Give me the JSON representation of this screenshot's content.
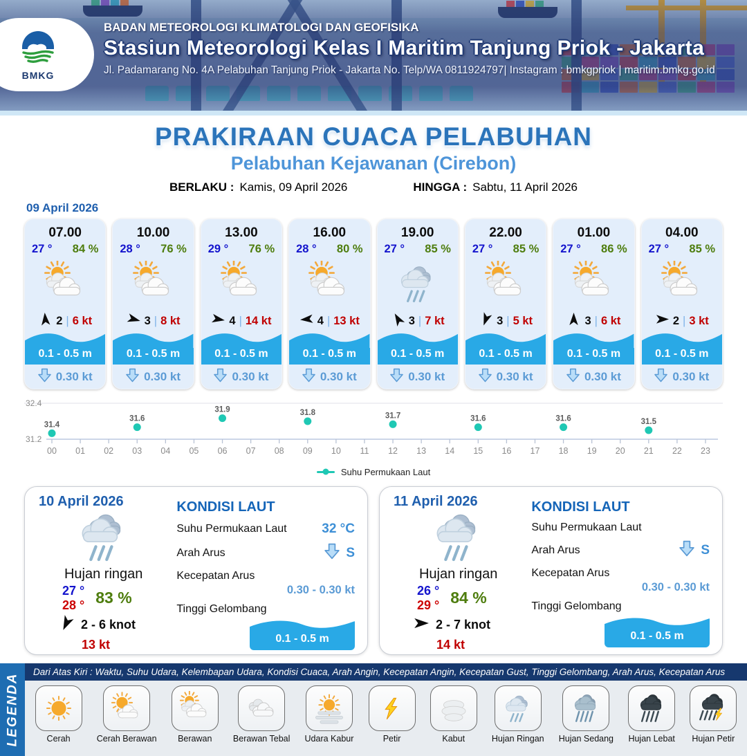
{
  "header": {
    "logo_text": "BMKG",
    "agency": "BADAN METEOROLOGI KLIMATOLOGI DAN GEOFISIKA",
    "station": "Stasiun Meteorologi Kelas I Maritim Tanjung Priok - Jakarta",
    "address": "Jl. Padamarang No. 4A Pelabuhan Tanjung Priok - Jakarta No. Telp/WA 0811924797| Instagram : bmkgpriok | maritim.bmkg.go.id"
  },
  "main": {
    "title": "PRAKIRAAN CUACA PELABUHAN",
    "subtitle": "Pelabuhan Kejawanan (Cirebon)",
    "valid_from_label": "BERLAKU :",
    "valid_from": "Kamis, 09 April 2026",
    "valid_to_label": "HINGGA :",
    "valid_to": "Sabtu, 11 April 2026"
  },
  "forecast": {
    "date": "09 April 2026",
    "hours": [
      {
        "time": "07.00",
        "temp": "27 °",
        "humidity": "84 %",
        "icon": "berawan",
        "wind_dir_deg": 355,
        "wind_speed": "2",
        "gust": "6 kt",
        "wave": "0.1 - 0.5 m",
        "current": "0.30 kt"
      },
      {
        "time": "10.00",
        "temp": "28 °",
        "humidity": "76 %",
        "icon": "berawan",
        "wind_dir_deg": 105,
        "wind_speed": "3",
        "gust": "8 kt",
        "wave": "0.1 - 0.5 m",
        "current": "0.30 kt"
      },
      {
        "time": "13.00",
        "temp": "29 °",
        "humidity": "76 %",
        "icon": "berawan",
        "wind_dir_deg": 100,
        "wind_speed": "4",
        "gust": "14 kt",
        "wave": "0.1 - 0.5 m",
        "current": "0.30 kt"
      },
      {
        "time": "16.00",
        "temp": "28 °",
        "humidity": "80 %",
        "icon": "berawan",
        "wind_dir_deg": 265,
        "wind_speed": "4",
        "gust": "13 kt",
        "wave": "0.1 - 0.5 m",
        "current": "0.30 kt"
      },
      {
        "time": "19.00",
        "temp": "27 °",
        "humidity": "85 %",
        "icon": "hujan-ringan",
        "wind_dir_deg": 330,
        "wind_speed": "3",
        "gust": "7 kt",
        "wave": "0.1 - 0.5 m",
        "current": "0.30 kt"
      },
      {
        "time": "22.00",
        "temp": "27 °",
        "humidity": "85 %",
        "icon": "berawan",
        "wind_dir_deg": 200,
        "wind_speed": "3",
        "gust": "5 kt",
        "wave": "0.1 - 0.5 m",
        "current": "0.30 kt"
      },
      {
        "time": "01.00",
        "temp": "27 °",
        "humidity": "86 %",
        "icon": "berawan",
        "wind_dir_deg": 0,
        "wind_speed": "3",
        "gust": "6 kt",
        "wave": "0.1 - 0.5 m",
        "current": "0.30 kt"
      },
      {
        "time": "04.00",
        "temp": "27 °",
        "humidity": "85 %",
        "icon": "berawan",
        "wind_dir_deg": 90,
        "wind_speed": "2",
        "gust": "3 kt",
        "wave": "0.1 - 0.5 m",
        "current": "0.30 kt"
      }
    ]
  },
  "chart_data": {
    "type": "scatter",
    "x": [
      0,
      3,
      6,
      9,
      12,
      15,
      18,
      21
    ],
    "values": [
      31.4,
      31.6,
      31.9,
      31.8,
      31.7,
      31.6,
      31.6,
      31.5
    ],
    "series_name": "Suhu Permukaan Laut",
    "xticks": [
      "00",
      "01",
      "02",
      "03",
      "04",
      "05",
      "06",
      "07",
      "08",
      "09",
      "10",
      "11",
      "12",
      "13",
      "14",
      "15",
      "16",
      "17",
      "18",
      "19",
      "20",
      "21",
      "22",
      "23"
    ],
    "ylim": [
      31.2,
      32.4
    ],
    "yticks": [
      "31.2",
      "32.4"
    ],
    "marker_color": "#1fc8b4",
    "grid": true,
    "legend_position": "bottom-center"
  },
  "daily": [
    {
      "date": "10 April 2026",
      "icon": "hujan-ringan",
      "condition": "Hujan ringan",
      "temp_min": "27 °",
      "temp_max": "28 °",
      "humidity": "83 %",
      "wind_dir_deg": 205,
      "wind_range": "2 - 6 knot",
      "gust": "13 kt",
      "sea": {
        "title": "KONDISI LAUT",
        "sst_label": "Suhu Permukaan Laut",
        "sst_value": "32 °C",
        "current_dir_label": "Arah Arus",
        "current_dir": "S",
        "current_speed_label": "Kecepatan Arus",
        "current_speed": "0.30 - 0.30 kt",
        "wave_label": "Tinggi Gelombang",
        "wave_value": "0.1 - 0.5 m"
      }
    },
    {
      "date": "11 April 2026",
      "icon": "hujan-ringan",
      "condition": "Hujan ringan",
      "temp_min": "26 °",
      "temp_max": "29 °",
      "humidity": "84 %",
      "wind_dir_deg": 90,
      "wind_range": "2 - 7 knot",
      "gust": "14 kt",
      "sea": {
        "title": "KONDISI LAUT",
        "sst_label": "Suhu Permukaan Laut",
        "sst_value": "",
        "current_dir_label": "Arah Arus",
        "current_dir": "S",
        "current_speed_label": "Kecepatan Arus",
        "current_speed": "0.30 - 0.30 kt",
        "wave_label": "Tinggi Gelombang",
        "wave_value": "0.1 - 0.5 m"
      }
    }
  ],
  "legend": {
    "band_label": "LEGENDA",
    "note": "Dari Atas Kiri : Waktu, Suhu Udara, Kelembapan Udara, Kondisi Cuaca, Arah Angin, Kecepatan Angin, Kecepatan Gust, Tinggi Gelombang, Arah Arus, Kecepatan Arus",
    "items": [
      {
        "label": "Cerah",
        "icon": "cerah"
      },
      {
        "label": "Cerah Berawan",
        "icon": "cerah-berawan"
      },
      {
        "label": "Berawan",
        "icon": "berawan"
      },
      {
        "label": "Berawan Tebal",
        "icon": "berawan-tebal"
      },
      {
        "label": "Udara Kabur",
        "icon": "udara-kabur"
      },
      {
        "label": "Petir",
        "icon": "petir"
      },
      {
        "label": "Kabut",
        "icon": "kabut"
      },
      {
        "label": "Hujan Ringan",
        "icon": "hujan-ringan"
      },
      {
        "label": "Hujan Sedang",
        "icon": "hujan-sedang"
      },
      {
        "label": "Hujan Lebat",
        "icon": "hujan-lebat"
      },
      {
        "label": "Hujan Petir",
        "icon": "hujan-petir"
      }
    ]
  },
  "colors": {
    "accent_blue": "#2b74ba",
    "subtitle_blue": "#4e95d9",
    "temp_blue": "#1414cd",
    "humidity_green": "#4e7d0e",
    "gust_red": "#c00000",
    "temp_max_red": "#cc0000",
    "wave_cyan": "#29a9e6",
    "current_blue": "#5b9bd5",
    "chart_teal": "#1fc8b4",
    "legend_navy": "#16386e",
    "legend_band_blue": "#1e6db2",
    "card_bg": "#e3eefb"
  }
}
